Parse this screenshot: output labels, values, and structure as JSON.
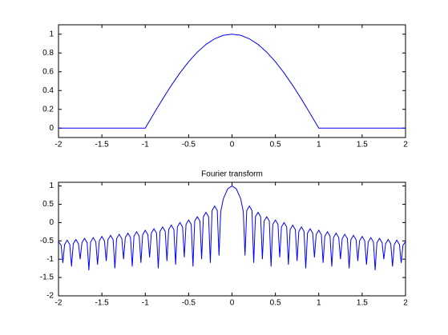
{
  "chart_data": [
    {
      "type": "line",
      "color": "#0000ff",
      "x": [
        -2,
        -1,
        -0.9,
        -0.8,
        -0.7,
        -0.6,
        -0.5,
        -0.4,
        -0.3,
        -0.2,
        -0.1,
        0,
        0.1,
        0.2,
        0.3,
        0.4,
        0.5,
        0.6,
        0.7,
        0.8,
        0.9,
        1,
        2
      ],
      "values": [
        0,
        0,
        0.156,
        0.309,
        0.454,
        0.588,
        0.707,
        0.809,
        0.891,
        0.951,
        0.988,
        1,
        0.988,
        0.951,
        0.891,
        0.809,
        0.707,
        0.588,
        0.454,
        0.309,
        0.156,
        0,
        0
      ],
      "xlim": [
        -2,
        2
      ],
      "ylim": [
        -0.1,
        1.1
      ],
      "xticks": [
        -2,
        -1.5,
        -1,
        -0.5,
        0,
        0.5,
        1,
        1.5,
        2
      ],
      "yticks": [
        0,
        0.2,
        0.4,
        0.6,
        0.8,
        1
      ]
    },
    {
      "type": "line",
      "title": "Fourier transform",
      "color": "#0000ff",
      "x": [
        -2,
        -1.97,
        -1.95,
        -1.93,
        -1.9,
        -1.87,
        -1.85,
        -1.83,
        -1.8,
        -1.77,
        -1.75,
        -1.73,
        -1.7,
        -1.67,
        -1.65,
        -1.63,
        -1.6,
        -1.57,
        -1.55,
        -1.53,
        -1.5,
        -1.47,
        -1.45,
        -1.43,
        -1.4,
        -1.37,
        -1.35,
        -1.33,
        -1.3,
        -1.27,
        -1.25,
        -1.23,
        -1.2,
        -1.17,
        -1.15,
        -1.13,
        -1.1,
        -1.07,
        -1.05,
        -1.03,
        -1,
        -0.97,
        -0.95,
        -0.93,
        -0.9,
        -0.87,
        -0.85,
        -0.83,
        -0.8,
        -0.77,
        -0.75,
        -0.73,
        -0.7,
        -0.67,
        -0.65,
        -0.63,
        -0.6,
        -0.57,
        -0.55,
        -0.53,
        -0.5,
        -0.47,
        -0.45,
        -0.43,
        -0.4,
        -0.37,
        -0.35,
        -0.33,
        -0.3,
        -0.27,
        -0.25,
        -0.23,
        -0.2,
        -0.17,
        -0.15,
        -0.13,
        -0.1,
        -0.05,
        0,
        0.05,
        0.1,
        0.13,
        0.15,
        0.17,
        0.2,
        0.23,
        0.25,
        0.27,
        0.3,
        0.33,
        0.35,
        0.37,
        0.4,
        0.43,
        0.45,
        0.47,
        0.5,
        0.53,
        0.55,
        0.57,
        0.6,
        0.63,
        0.65,
        0.67,
        0.7,
        0.73,
        0.75,
        0.77,
        0.8,
        0.83,
        0.85,
        0.87,
        0.9,
        0.93,
        0.95,
        0.97,
        1,
        1.03,
        1.05,
        1.07,
        1.1,
        1.13,
        1.15,
        1.17,
        1.2,
        1.23,
        1.25,
        1.27,
        1.3,
        1.33,
        1.35,
        1.37,
        1.4,
        1.43,
        1.45,
        1.47,
        1.5,
        1.53,
        1.55,
        1.57,
        1.6,
        1.63,
        1.65,
        1.67,
        1.7,
        1.73,
        1.75,
        1.77,
        1.8,
        1.83,
        1.85,
        1.87,
        1.9,
        1.93,
        1.95,
        1.97,
        2
      ],
      "values": [
        -0.52,
        -0.62,
        -1.1,
        -0.6,
        -0.48,
        -0.6,
        -1.2,
        -0.58,
        -0.46,
        -0.58,
        -1.0,
        -0.55,
        -0.43,
        -0.55,
        -1.3,
        -0.53,
        -0.41,
        -0.53,
        -1.15,
        -0.5,
        -0.38,
        -0.5,
        -1.05,
        -0.47,
        -0.35,
        -0.47,
        -1.25,
        -0.44,
        -0.32,
        -0.44,
        -1.0,
        -0.41,
        -0.29,
        -0.41,
        -1.2,
        -0.37,
        -0.25,
        -0.37,
        -1.1,
        -0.33,
        -0.21,
        -0.33,
        -0.95,
        -0.29,
        -0.17,
        -0.29,
        -1.25,
        -0.24,
        -0.12,
        -0.24,
        -1.05,
        -0.19,
        -0.07,
        -0.19,
        -1.15,
        -0.12,
        0,
        -0.12,
        -0.95,
        -0.05,
        0.07,
        -0.05,
        -1.2,
        0.04,
        0.16,
        0.04,
        -1.0,
        0.16,
        0.28,
        0.16,
        -1.1,
        0.33,
        0.45,
        0.33,
        -0.9,
        0.3,
        0.65,
        0.92,
        1,
        0.92,
        0.65,
        0.3,
        -0.9,
        0.33,
        0.45,
        0.33,
        -1.1,
        0.16,
        0.28,
        0.16,
        -1.0,
        0.04,
        0.16,
        0.04,
        -1.2,
        -0.05,
        0.07,
        -0.05,
        -0.95,
        -0.12,
        0,
        -0.12,
        -1.15,
        -0.19,
        -0.07,
        -0.19,
        -1.05,
        -0.24,
        -0.12,
        -0.24,
        -1.25,
        -0.29,
        -0.17,
        -0.29,
        -0.95,
        -0.33,
        -0.21,
        -0.33,
        -1.1,
        -0.37,
        -0.25,
        -0.37,
        -1.2,
        -0.41,
        -0.29,
        -0.41,
        -1.0,
        -0.44,
        -0.32,
        -0.44,
        -1.25,
        -0.47,
        -0.35,
        -0.47,
        -1.05,
        -0.5,
        -0.38,
        -0.5,
        -1.15,
        -0.53,
        -0.41,
        -0.53,
        -1.3,
        -0.55,
        -0.43,
        -0.55,
        -1.0,
        -0.58,
        -0.46,
        -0.58,
        -1.2,
        -0.6,
        -0.48,
        -0.6,
        -1.1,
        -0.62,
        -0.52
      ],
      "xlim": [
        -2,
        2
      ],
      "ylim": [
        -2,
        1.1
      ],
      "xticks": [
        -2,
        -1.5,
        -1,
        -0.5,
        0,
        0.5,
        1,
        1.5,
        2
      ],
      "yticks": [
        -2,
        -1.5,
        -1,
        -0.5,
        0,
        0.5,
        1
      ]
    }
  ]
}
